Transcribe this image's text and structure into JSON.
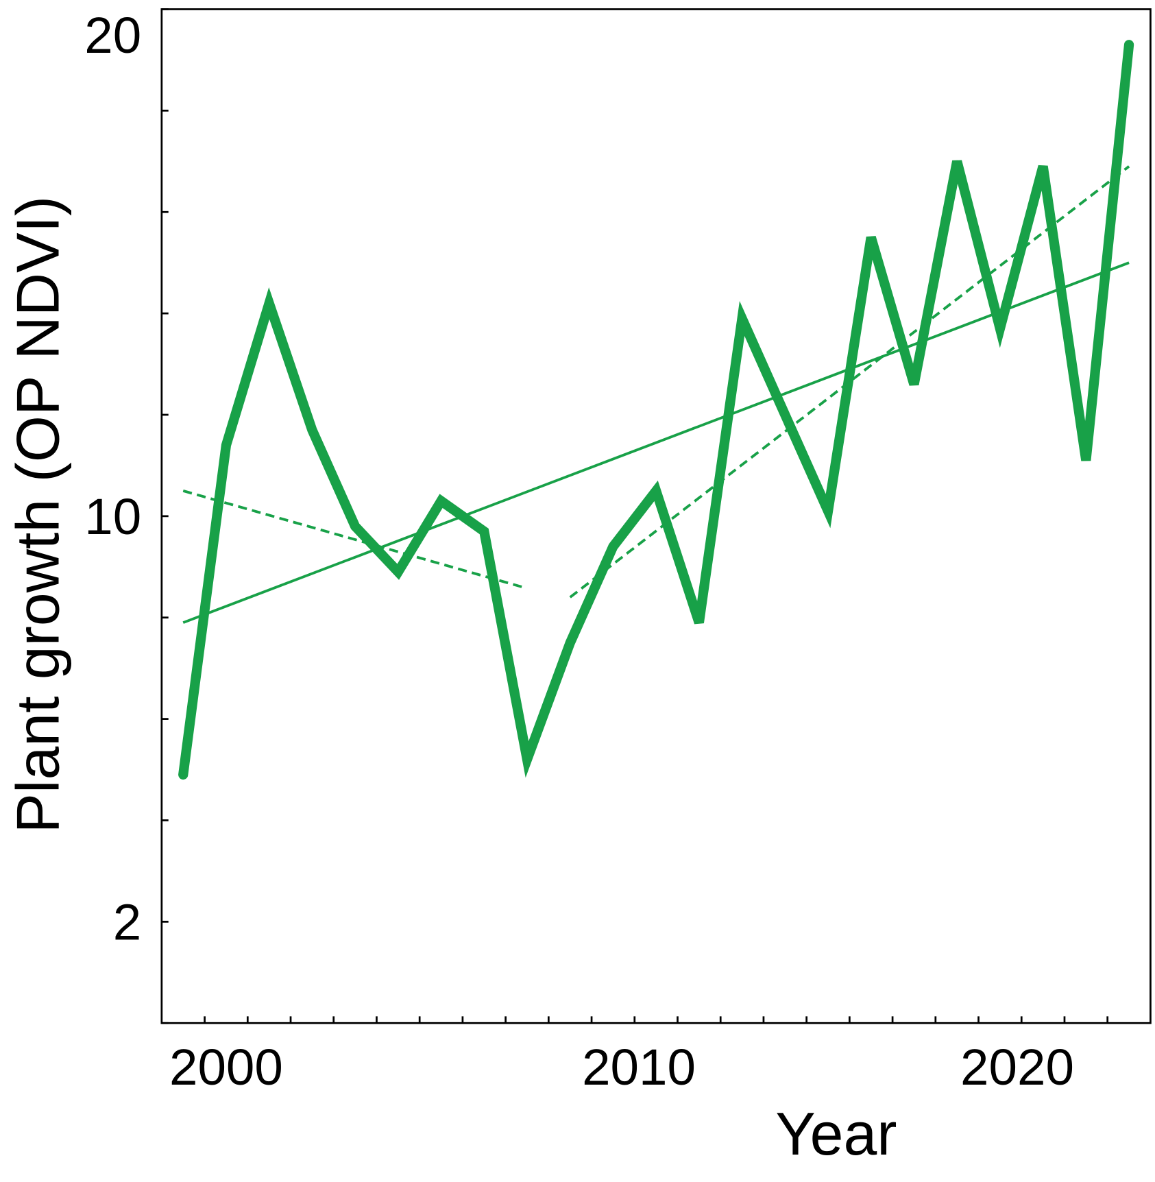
{
  "chart_data": {
    "type": "line",
    "title": "",
    "xlabel": "Year",
    "ylabel": "Plant growth (OP NDVI)",
    "xlim": [
      1999.5,
      2022.5
    ],
    "ylim": [
      0,
      20
    ],
    "x_tick_labels": [
      "2000",
      "2010",
      "2020"
    ],
    "y_tick_labels": [
      "2",
      "10",
      "20"
    ],
    "y_tick_values": [
      2,
      10,
      20
    ],
    "y_minor_ticks": [
      0,
      2,
      4,
      6,
      8,
      10,
      12,
      14,
      16,
      18,
      20
    ],
    "x_minor_ticks": [
      2000.5,
      2001.5,
      2002.5,
      2003.5,
      2004.5,
      2005.5,
      2006.5,
      2007.5,
      2008.5,
      2009.5,
      2010.5,
      2011.5,
      2012.5,
      2013.5,
      2014.5,
      2015.5,
      2016.5,
      2017.5,
      2018.5,
      2019.5,
      2020.5,
      2021.5
    ],
    "grid": false,
    "color": "#18A148",
    "series": [
      {
        "x": [
          2000,
          2001,
          2002,
          2003,
          2004,
          2005,
          2006,
          2007,
          2008,
          2009,
          2010,
          2011,
          2012,
          2013,
          2014,
          2015,
          2016,
          2017,
          2018,
          2019,
          2020,
          2021,
          2022
        ],
        "y": [
          4.9,
          11.4,
          14.2,
          11.7,
          9.8,
          8.9,
          10.3,
          9.7,
          5.2,
          7.5,
          9.4,
          10.5,
          7.9,
          13.9,
          12.0,
          10.1,
          15.5,
          12.6,
          17.0,
          13.7,
          16.9,
          11.1,
          19.3
        ]
      }
    ],
    "trend_lines": [
      {
        "style": "solid",
        "x": [
          2000,
          2022
        ],
        "y": [
          7.9,
          15.0
        ]
      },
      {
        "style": "dashed",
        "x": [
          2000,
          2007.9
        ],
        "y": [
          10.5,
          8.6
        ]
      },
      {
        "style": "dashed",
        "x": [
          2009,
          2022
        ],
        "y": [
          8.4,
          16.9
        ]
      }
    ]
  }
}
